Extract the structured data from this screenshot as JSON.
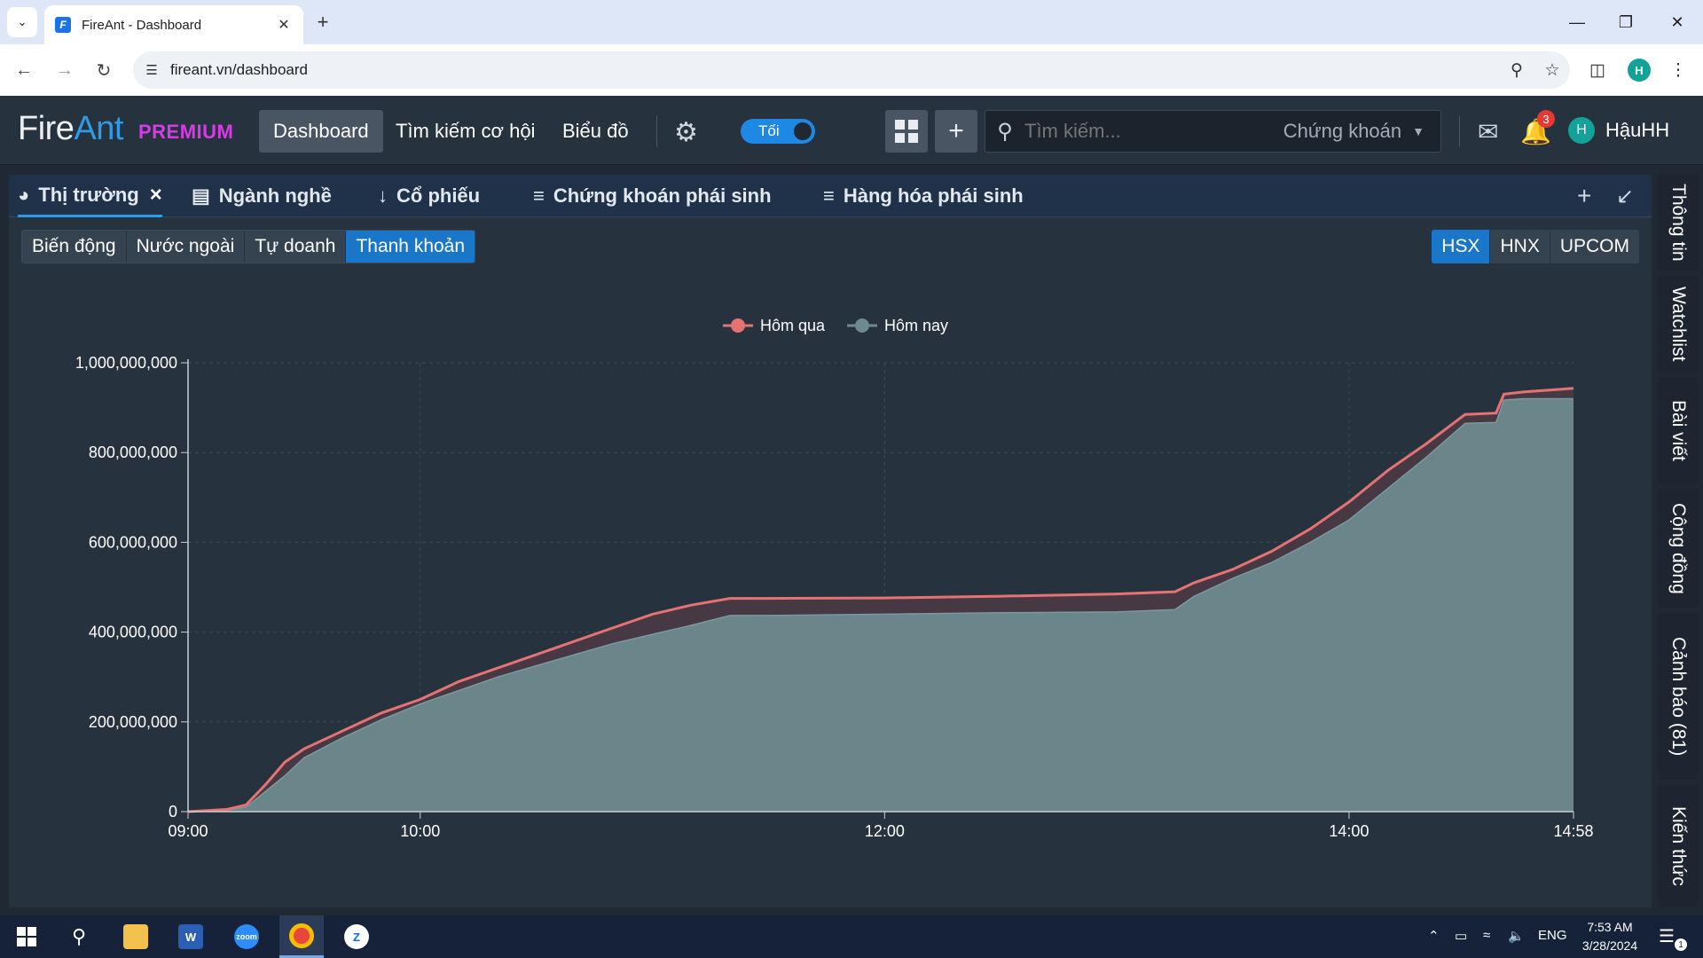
{
  "browser": {
    "tab_title": "FireAnt - Dashboard",
    "url": "fireant.vn/dashboard",
    "profile_initial": "H"
  },
  "header": {
    "logo_fire": "Fire",
    "logo_ant": "Ant",
    "premium": "PREMIUM",
    "nav": [
      "Dashboard",
      "Tìm kiếm cơ hội",
      "Biểu đồ"
    ],
    "theme_toggle_label": "Tối",
    "search_placeholder": "Tìm kiếm...",
    "search_type": "Chứng khoán",
    "notification_count": "3",
    "user_initial": "H",
    "user_name": "HậuHH"
  },
  "panel_tabs": [
    {
      "label": "Thị trường",
      "icon": "pie-chart-icon",
      "active": true
    },
    {
      "label": "Ngành nghề",
      "icon": "list-icon"
    },
    {
      "label": "Cổ phiếu",
      "icon": "sort-numeric-icon"
    },
    {
      "label": "Chứng khoán phái sinh",
      "icon": "numbered-list-icon"
    },
    {
      "label": "Hàng hóa phái sinh",
      "icon": "numbered-list-icon"
    }
  ],
  "subtabs": [
    "Biến động",
    "Nước ngoài",
    "Tự doanh",
    "Thanh khoản"
  ],
  "subtab_active": "Thanh khoản",
  "exchanges": [
    "HSX",
    "HNX",
    "UPCOM"
  ],
  "exchange_active": "HSX",
  "right_sidebar": [
    "Thông tin",
    "Watchlist",
    "Bài viết",
    "Cộng đồng",
    "Cảnh báo (81)",
    "Kiến thức"
  ],
  "taskbar": {
    "lang": "ENG",
    "time": "7:53 AM",
    "date": "3/28/2024",
    "notif_count": "1"
  },
  "colors": {
    "yesterday": "#e57373",
    "today": "#6e8a8f",
    "accent": "#1976c8"
  },
  "chart_data": {
    "type": "area",
    "x_ticks": [
      "09:00",
      "10:00",
      "12:00",
      "14:00",
      "14:58"
    ],
    "x_range_minutes": [
      "09:00",
      "14:58"
    ],
    "y_ticks": [
      "0",
      "200,000,000",
      "400,000,000",
      "600,000,000",
      "800,000,000",
      "1,000,000,000"
    ],
    "ylim": [
      0,
      1000000000
    ],
    "grid": true,
    "legend_position": "top-center",
    "series": [
      {
        "name": "Hôm qua",
        "color": "#e57373",
        "x": [
          "09:00",
          "09:10",
          "09:15",
          "09:20",
          "09:25",
          "09:30",
          "09:40",
          "09:50",
          "10:00",
          "10:10",
          "10:20",
          "10:30",
          "10:40",
          "10:50",
          "11:00",
          "11:10",
          "11:20",
          "11:30",
          "12:00",
          "12:30",
          "13:00",
          "13:15",
          "13:20",
          "13:30",
          "13:40",
          "13:50",
          "14:00",
          "14:10",
          "14:20",
          "14:30",
          "14:38",
          "14:40",
          "14:45",
          "14:58"
        ],
        "values": [
          0,
          5000000,
          15000000,
          60000000,
          110000000,
          140000000,
          180000000,
          220000000,
          250000000,
          290000000,
          320000000,
          350000000,
          380000000,
          410000000,
          440000000,
          460000000,
          475000000,
          475000000,
          476000000,
          480000000,
          485000000,
          490000000,
          510000000,
          540000000,
          580000000,
          630000000,
          690000000,
          760000000,
          820000000,
          885000000,
          888000000,
          930000000,
          935000000,
          943000000
        ]
      },
      {
        "name": "Hôm nay",
        "color": "#6e8a8f",
        "x": [
          "09:00",
          "09:10",
          "09:15",
          "09:20",
          "09:25",
          "09:30",
          "09:40",
          "09:50",
          "10:00",
          "10:10",
          "10:20",
          "10:30",
          "10:40",
          "10:50",
          "11:00",
          "11:10",
          "11:20",
          "11:30",
          "12:00",
          "12:30",
          "13:00",
          "13:15",
          "13:20",
          "13:30",
          "13:40",
          "13:50",
          "14:00",
          "14:10",
          "14:20",
          "14:30",
          "14:38",
          "14:40",
          "14:45",
          "14:58"
        ],
        "values": [
          0,
          3000000,
          10000000,
          45000000,
          80000000,
          120000000,
          165000000,
          205000000,
          240000000,
          270000000,
          300000000,
          325000000,
          350000000,
          375000000,
          395000000,
          415000000,
          437000000,
          437000000,
          440000000,
          443000000,
          445000000,
          450000000,
          480000000,
          520000000,
          555000000,
          600000000,
          650000000,
          720000000,
          790000000,
          865000000,
          867000000,
          917000000,
          920000000,
          920000000
        ]
      }
    ]
  }
}
